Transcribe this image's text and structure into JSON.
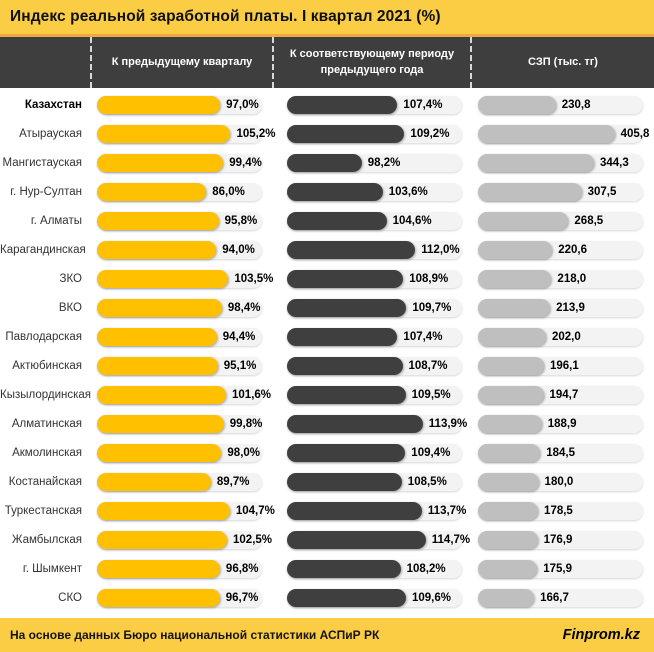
{
  "title": "Индекс реальной заработной платы. I квартал 2021 (%)",
  "columns": [
    {
      "label": "К предыдущему кварталу"
    },
    {
      "label": "К соответствующему  периоду предыдущего года"
    },
    {
      "label": "СЗП (тыс. тг)"
    }
  ],
  "footer": {
    "source": "На основе данных Бюро национальной статистики АСПиР РК",
    "brand": "Finprom.kz"
  },
  "colors": {
    "banner": "#FBCD44",
    "banner_border": "#F1A83C",
    "header_band": "#3E3E3E",
    "yellow_bar": "#FFC000",
    "dark_bar": "#3F3F3F",
    "gray_bar": "#BFBFBF",
    "track": "#F3F3F3"
  },
  "chart_data": {
    "type": "bar",
    "title": "Индекс реальной заработной платы. I квартал 2021 (%)",
    "orientation": "horizontal",
    "grid": false,
    "legend_position": "top-column-headers",
    "categories": [
      "Казахстан",
      "Атырауская",
      "Мангистауская",
      "г. Нур-Султан",
      "г. Алматы",
      "Карагандинская",
      "ЗКО",
      "ВКО",
      "Павлодарская",
      "Актюбинская",
      "Кызылординская",
      "Алматинская",
      "Акмолинская",
      "Костанайская",
      "Туркестанская",
      "Жамбылская",
      "г. Шымкент",
      "СКО"
    ],
    "series": [
      {
        "name": "К предыдущему кварталу",
        "unit": "%",
        "color": "#FFC000",
        "axis_min": 0,
        "axis_max": 130,
        "values": [
          97.0,
          105.2,
          99.4,
          86.0,
          95.8,
          94.0,
          103.5,
          98.4,
          94.4,
          95.1,
          101.6,
          99.8,
          98.0,
          89.7,
          104.7,
          102.5,
          96.8,
          96.7
        ],
        "value_labels": [
          "97,0%",
          "105,2%",
          "99,4%",
          "86,0%",
          "95,8%",
          "94,0%",
          "103,5%",
          "98,4%",
          "94,4%",
          "95,1%",
          "101,6%",
          "99,8%",
          "98,0%",
          "89,7%",
          "104,7%",
          "102,5%",
          "96,8%",
          "96,7%"
        ]
      },
      {
        "name": "К соответствующему периоду предыдущего года",
        "unit": "%",
        "color": "#3F3F3F",
        "axis_min": 79,
        "axis_max": 124,
        "values": [
          107.4,
          109.2,
          98.2,
          103.6,
          104.6,
          112.0,
          108.9,
          109.7,
          107.4,
          108.7,
          109.5,
          113.9,
          109.4,
          108.5,
          113.7,
          114.7,
          108.2,
          109.6
        ],
        "value_labels": [
          "107,4%",
          "109,2%",
          "98,2%",
          "103,6%",
          "104,6%",
          "112,0%",
          "108,9%",
          "109,7%",
          "107,4%",
          "108,7%",
          "109,5%",
          "113,9%",
          "109,4%",
          "108,5%",
          "113,7%",
          "114,7%",
          "108,2%",
          "109,6%"
        ]
      },
      {
        "name": "СЗП (тыс. тг)",
        "unit": "тыс. тг",
        "color": "#BFBFBF",
        "axis_min": 0,
        "axis_max": 490,
        "values": [
          230.8,
          405.8,
          344.3,
          307.5,
          268.5,
          220.6,
          218.0,
          213.9,
          202.0,
          196.1,
          194.7,
          188.9,
          184.5,
          180.0,
          178.5,
          176.9,
          175.9,
          166.7
        ],
        "value_labels": [
          "230,8",
          "405,8",
          "344,3",
          "307,5",
          "268,5",
          "220,6",
          "218,0",
          "213,9",
          "202,0",
          "196,1",
          "194,7",
          "188,9",
          "184,5",
          "180,0",
          "178,5",
          "176,9",
          "175,9",
          "166,7"
        ]
      }
    ]
  }
}
